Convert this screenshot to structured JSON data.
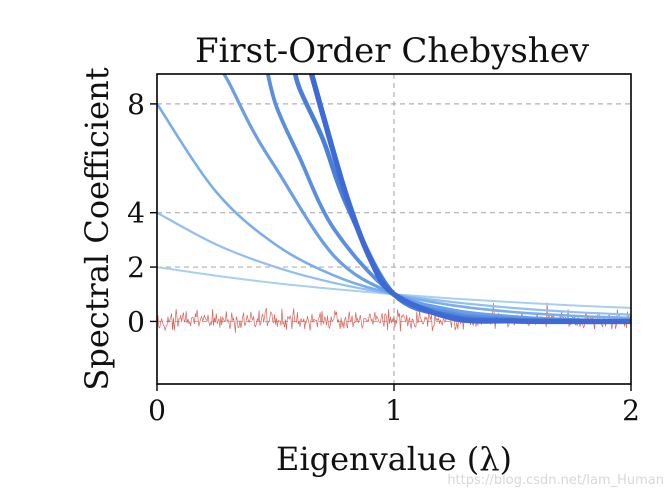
{
  "chart_data": {
    "type": "line",
    "title": "First-Order Chebyshev",
    "xlabel": "Eigenvalue (λ)",
    "ylabel": "Spectral Coefficient",
    "xlim": [
      0,
      2
    ],
    "ylim": [
      -2.3,
      9.1
    ],
    "x_ticks": [
      0,
      1,
      2
    ],
    "y_ticks": [
      0,
      2,
      4,
      8
    ],
    "x_tick_labels": [
      "0",
      "1",
      "2"
    ],
    "y_tick_labels": [
      "0",
      "2",
      "4",
      "8"
    ],
    "grid": "dashed, at ticks",
    "series": [
      {
        "color": "#a9cfee",
        "width": 2.0,
        "x": [
          0,
          0.25,
          0.5,
          0.75,
          1.0,
          1.25,
          1.5,
          1.75,
          2.0
        ],
        "values": [
          2.0,
          1.68,
          1.41,
          1.19,
          1.0,
          0.84,
          0.71,
          0.59,
          0.5
        ]
      },
      {
        "color": "#93bfee",
        "width": 2.2,
        "x": [
          0,
          0.25,
          0.5,
          0.75,
          1.0,
          1.25,
          1.5,
          1.75,
          2.0
        ],
        "values": [
          4.0,
          2.83,
          2.0,
          1.41,
          1.0,
          0.71,
          0.5,
          0.35,
          0.25
        ]
      },
      {
        "color": "#7aaeea",
        "width": 2.6,
        "x": [
          0,
          0.25,
          0.5,
          0.75,
          1.0,
          1.25,
          1.5,
          1.75,
          2.0
        ],
        "values": [
          8.0,
          4.76,
          2.83,
          1.68,
          1.0,
          0.59,
          0.35,
          0.21,
          0.13
        ]
      },
      {
        "color": "#6a9fe6",
        "width": 3.2,
        "x": [
          0.25,
          0.3,
          0.4,
          0.5,
          0.75,
          1.0,
          1.25,
          1.5,
          1.75,
          2.0
        ],
        "values": [
          9.51,
          8.84,
          7.1,
          5.66,
          2.38,
          1.0,
          0.42,
          0.18,
          0.07,
          0.03
        ]
      },
      {
        "color": "#5a8ee0",
        "width": 3.8,
        "x": [
          0.45,
          0.5,
          0.6,
          0.75,
          1.0,
          1.25,
          1.5,
          1.75,
          2.0
        ],
        "values": [
          9.86,
          8.0,
          6.06,
          3.36,
          1.0,
          0.3,
          0.09,
          0.03,
          0.01
        ]
      },
      {
        "color": "#4a7fd9",
        "width": 4.6,
        "x": [
          0.57,
          0.6,
          0.7,
          0.8,
          1.0,
          1.25,
          1.5,
          1.75,
          2.0
        ],
        "values": [
          9.7,
          8.6,
          6.7,
          4.3,
          1.0,
          0.2,
          0.04,
          0.01,
          0.0
        ]
      },
      {
        "color": "#3d6ad4",
        "width": 5.4,
        "x": [
          0.63,
          0.7,
          0.8,
          0.9,
          1.0,
          1.25,
          1.5,
          1.75,
          2.0
        ],
        "values": [
          9.8,
          7.6,
          4.6,
          2.3,
          1.0,
          0.12,
          0.02,
          0.0,
          0.0
        ]
      }
    ],
    "noise_series": {
      "color": "#d9645a",
      "center": 0.05,
      "amplitude": 0.35,
      "x_range": [
        0,
        2
      ]
    },
    "watermark": "https://blog.csdn.net/lam_Human"
  }
}
